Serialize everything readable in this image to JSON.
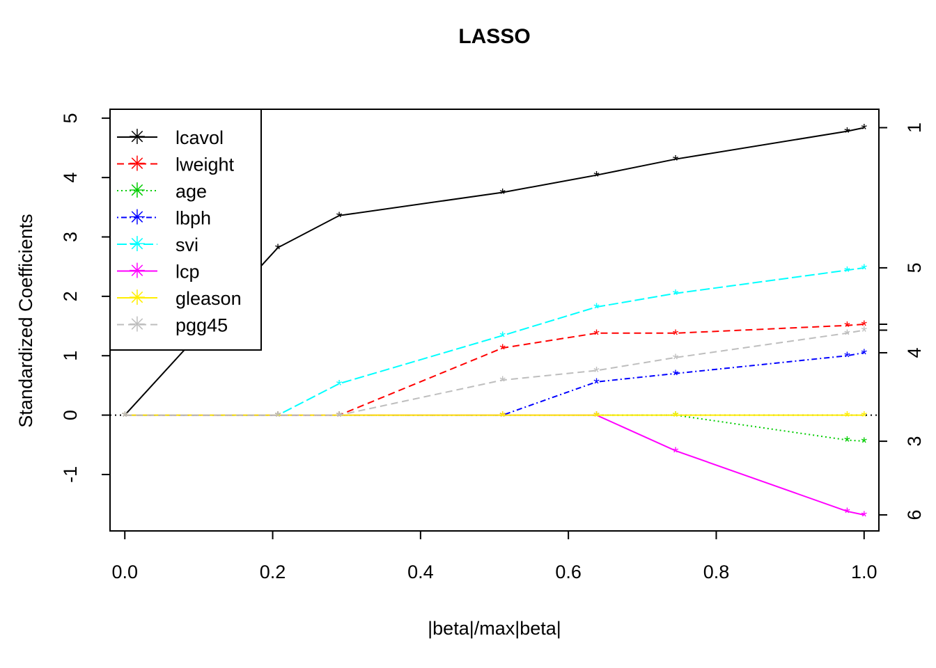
{
  "chart_data": {
    "type": "line",
    "title": "LASSO",
    "xlabel": "|beta|/max|beta|",
    "ylabel": "Standardized Coefficients",
    "xlim": [
      -0.02,
      1.02
    ],
    "ylim": [
      -1.95,
      5.15
    ],
    "x_ticks": [
      "0.0",
      "0.2",
      "0.4",
      "0.6",
      "0.8",
      "1.0"
    ],
    "y_ticks": [
      "-1",
      "0",
      "1",
      "2",
      "3",
      "4",
      "5"
    ],
    "right_axis_labels": [
      {
        "label": "1",
        "y": 4.84
      },
      {
        "label": "5",
        "y": 2.48
      },
      {
        "label": "4",
        "y": 1.05
      },
      {
        "label": "3",
        "y": -0.44
      },
      {
        "label": "6",
        "y": -1.68
      }
    ],
    "right_axis_extra_ticks": [
      1.53,
      1.43
    ],
    "zero_line": true,
    "x": [
      0.0,
      0.207,
      0.29,
      0.511,
      0.638,
      0.745,
      0.977,
      1.0
    ],
    "series": [
      {
        "name": "lcavol",
        "color": "#000000",
        "dash": "",
        "values": [
          0.0,
          2.82,
          3.36,
          3.75,
          4.04,
          4.31,
          4.78,
          4.84
        ]
      },
      {
        "name": "lweight",
        "color": "#ff0000",
        "dash": "10,6",
        "values": [
          0.0,
          0.0,
          0.0,
          1.13,
          1.38,
          1.38,
          1.51,
          1.53
        ]
      },
      {
        "name": "age",
        "color": "#00cc00",
        "dash": "2,4",
        "values": [
          0.0,
          0.0,
          0.0,
          0.0,
          0.0,
          0.0,
          -0.42,
          -0.44
        ]
      },
      {
        "name": "lbph",
        "color": "#0000ff",
        "dash": "2,4,8,4",
        "values": [
          0.0,
          0.0,
          0.0,
          0.0,
          0.56,
          0.7,
          1.0,
          1.05
        ]
      },
      {
        "name": "svi",
        "color": "#00ffff",
        "dash": "14,5",
        "values": [
          0.0,
          0.0,
          0.53,
          1.34,
          1.82,
          2.05,
          2.44,
          2.48
        ]
      },
      {
        "name": "lcp",
        "color": "#ff00ff",
        "dash": "",
        "values": [
          0.0,
          0.0,
          0.0,
          0.0,
          0.0,
          -0.6,
          -1.62,
          -1.68
        ]
      },
      {
        "name": "gleason",
        "color": "#ffee00",
        "dash": "",
        "values": [
          0.0,
          0.0,
          0.0,
          0.0,
          0.0,
          0.0,
          0.0,
          0.0
        ]
      },
      {
        "name": "pgg45",
        "color": "#bebebe",
        "dash": "10,6",
        "values": [
          0.0,
          0.0,
          0.0,
          0.59,
          0.75,
          0.97,
          1.38,
          1.43
        ]
      }
    ],
    "legend": {
      "placement": "top-left",
      "entries": [
        "lcavol",
        "lweight",
        "age",
        "lbph",
        "svi",
        "lcp",
        "gleason",
        "pgg45"
      ]
    }
  }
}
